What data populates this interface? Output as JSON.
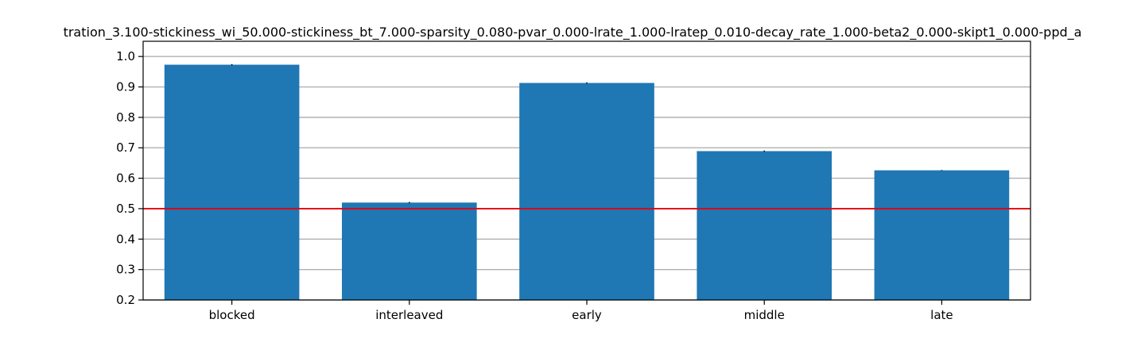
{
  "chart_data": {
    "type": "bar",
    "title": "tration_3.100-stickiness_wi_50.000-stickiness_bt_7.000-sparsity_0.080-pvar_0.000-lrate_1.000-lratep_0.010-decay_rate_1.000-beta2_0.000-skipt1_0.000-ppd_a",
    "xlabel": "",
    "ylabel": "",
    "categories": [
      "blocked",
      "interleaved",
      "early",
      "middle",
      "late"
    ],
    "values": [
      0.973,
      0.52,
      0.913,
      0.689,
      0.626
    ],
    "errors": [
      0.002,
      0.002,
      0.002,
      0.002,
      0.001
    ],
    "ylim": [
      0.2,
      1.05
    ],
    "yticks": [
      0.2,
      0.3,
      0.4,
      0.5,
      0.6,
      0.7,
      0.8,
      0.9,
      1.0
    ],
    "ytick_labels": [
      "0.2",
      "0.3",
      "0.4",
      "0.5",
      "0.6",
      "0.7",
      "0.8",
      "0.9",
      "1.0"
    ],
    "grid": "horizontal",
    "reference_line": {
      "y": 0.5,
      "color": "#e8000b"
    },
    "colors": {
      "bar": "#1f77b4",
      "grid": "#b0b0b0",
      "axis": "#000000",
      "error": "#000000"
    }
  }
}
